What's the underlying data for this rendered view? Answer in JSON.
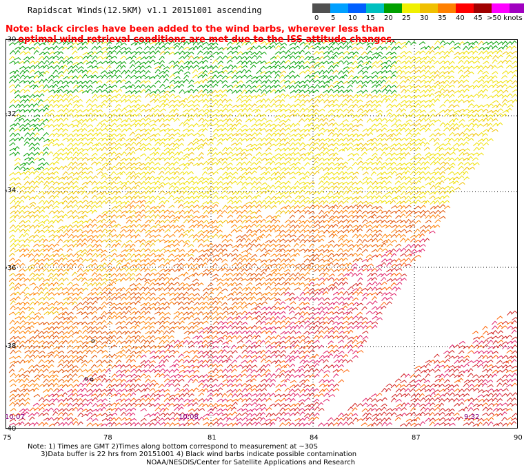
{
  "header": {
    "title": "Rapidscat Winds(12.5KM) v1.1 20151001 ascending"
  },
  "note": {
    "line1": "Note: black circles have been added to the wind barbs, wherever less than",
    "line2": "    optimal wind retrieval conditions are met due to the ISS attitude changes."
  },
  "scale": {
    "colors": [
      "#505050",
      "#00a0ff",
      "#0060ff",
      "#00c0c0",
      "#00a000",
      "#f0f000",
      "#f0c000",
      "#ff8000",
      "#ff0000",
      "#a00000",
      "#ff00ff",
      "#a000c0",
      "#400080"
    ],
    "labels": [
      "0",
      "5",
      "10",
      "15",
      "20",
      "25",
      "30",
      "35",
      "40",
      "45",
      ">50 knots"
    ]
  },
  "map": {
    "lat_labels": [
      "-30",
      "-32",
      "-34",
      "-36",
      "-38",
      "-40"
    ],
    "lon_labels": [
      "75",
      "78",
      "81",
      "84",
      "87",
      "90"
    ],
    "time_labels": [
      "10:07",
      "10:08",
      "9:32"
    ]
  },
  "footer": {
    "line1": "Note: 1) Times are GMT 2)Times along bottom correspond to measurement at ~30S",
    "line2": "      3)Data buffer is 22 hrs from 20151001 4) Black wind barbs indicate possible contamination",
    "credit": "NOAA/NESDIS/Center for Satellite Applications and Research"
  }
}
